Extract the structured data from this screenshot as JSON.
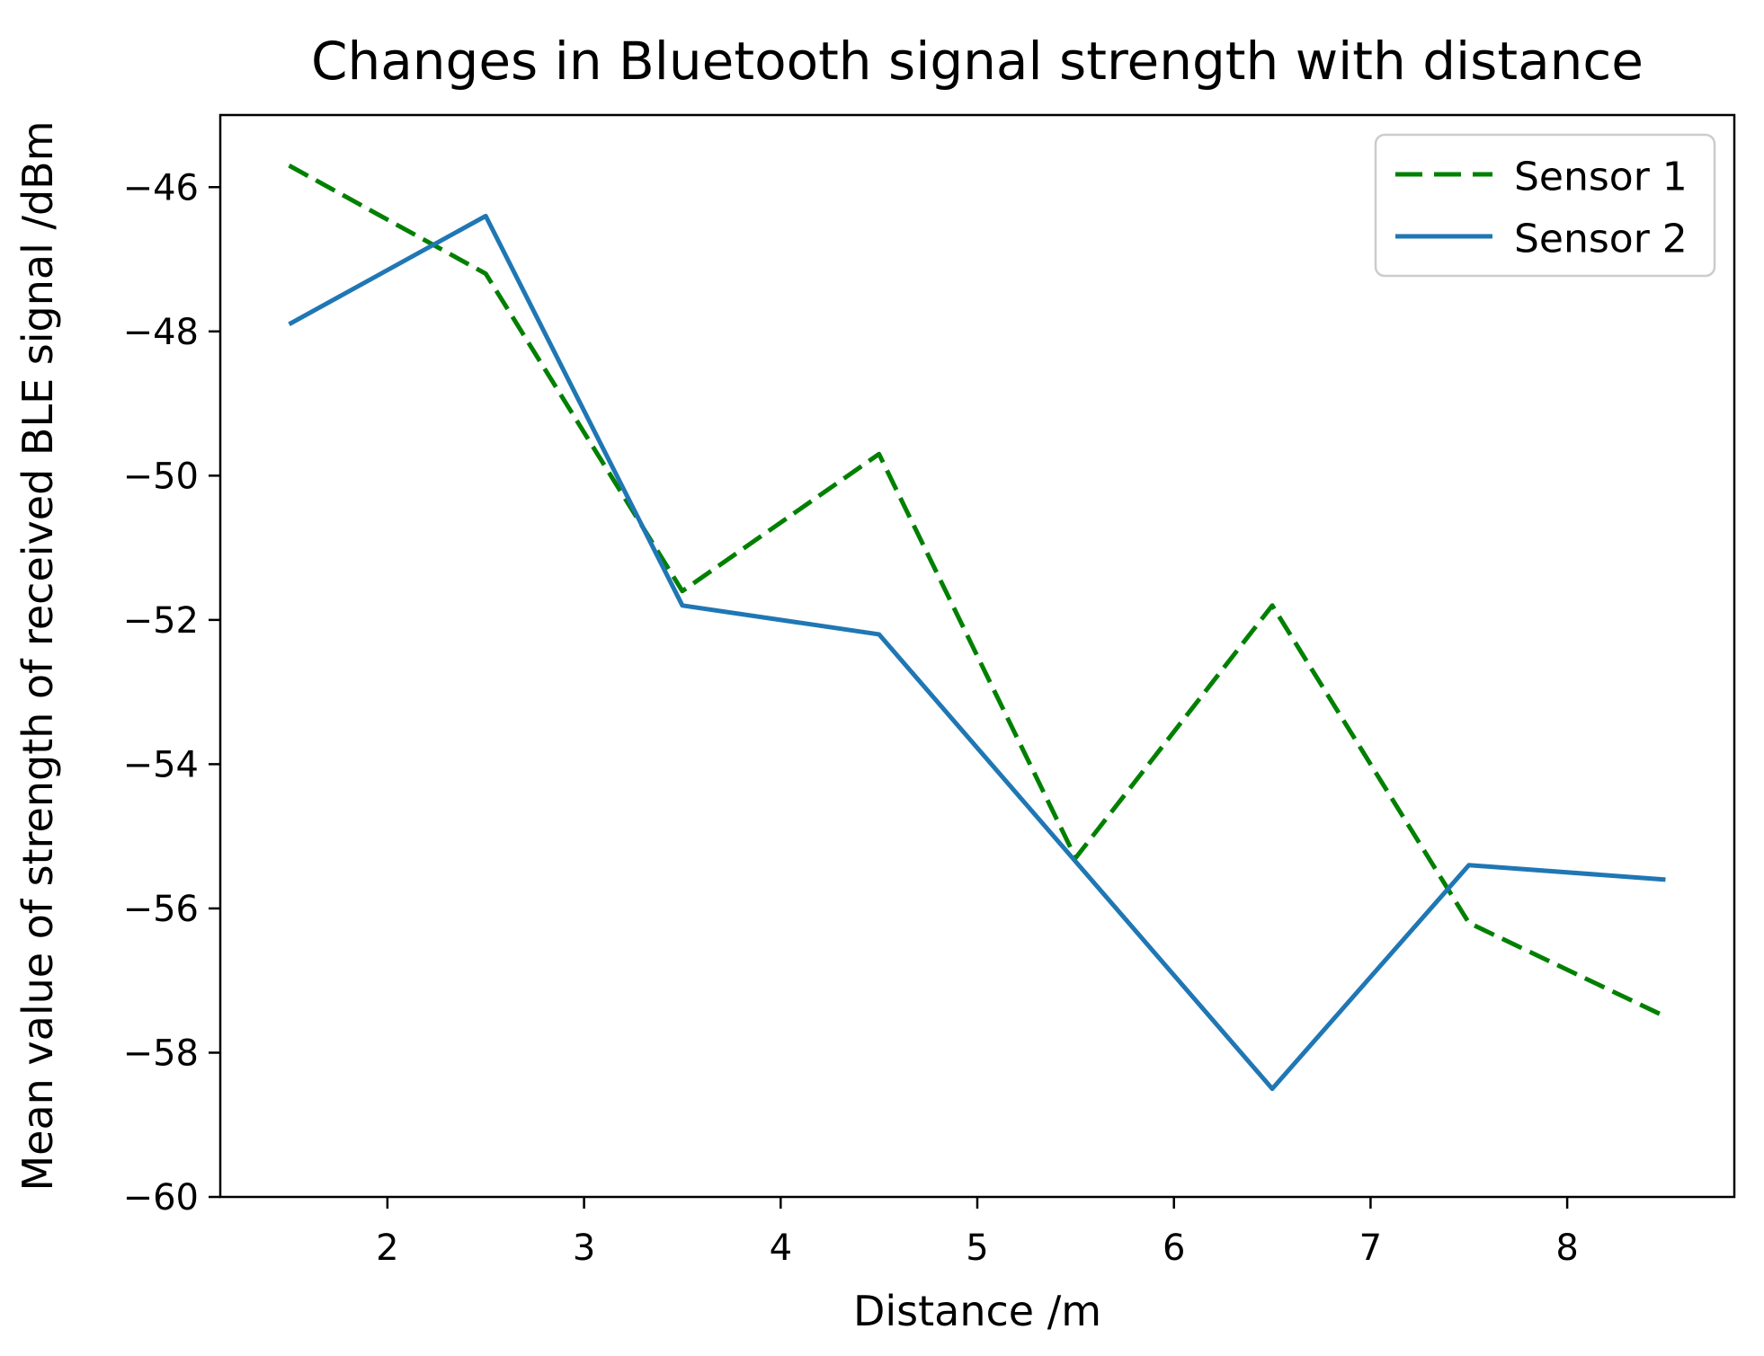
{
  "chart_data": {
    "type": "line",
    "title": "Changes in Bluetooth signal strength with distance",
    "xlabel": "Distance /m",
    "ylabel": "Mean value of strength of received BLE signal /dBm",
    "x": [
      1.5,
      2.5,
      3.5,
      4.5,
      5.5,
      6.5,
      7.5,
      8.5
    ],
    "series": [
      {
        "name": "Sensor 1",
        "color": "#008000",
        "style": "dashed",
        "values": [
          -45.7,
          -47.2,
          -51.6,
          -49.7,
          -55.3,
          -51.8,
          -56.2,
          -57.5
        ]
      },
      {
        "name": "Sensor 2",
        "color": "#1f77b4",
        "style": "solid",
        "values": [
          -47.9,
          -46.4,
          -51.8,
          -52.2,
          -55.35,
          -58.5,
          -55.4,
          -55.6
        ]
      }
    ],
    "xlim": [
      1.15,
      8.85
    ],
    "ylim": [
      -60,
      -45
    ],
    "xticks": [
      2,
      3,
      4,
      5,
      6,
      7,
      8
    ],
    "yticks": [
      -60,
      -58,
      -56,
      -54,
      -52,
      -50,
      -48,
      -46
    ],
    "grid": false,
    "legend_position": "upper right"
  }
}
